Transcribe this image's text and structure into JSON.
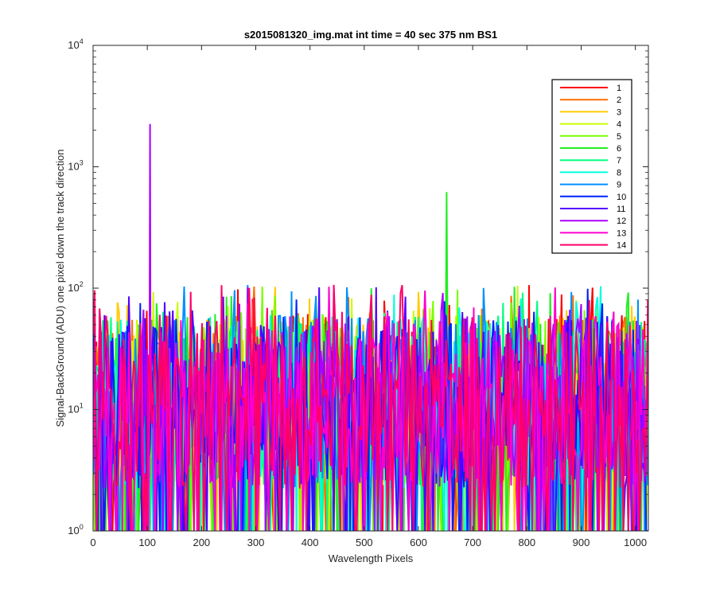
{
  "chart_data": {
    "type": "line",
    "title": "s2015081320_img.mat int time = 40 sec  375 nm BS1",
    "xlabel": "Wavelength Pixels",
    "ylabel": "Signal-BackGround (ADU) one pixel down the track direction",
    "xlim": [
      0,
      1024
    ],
    "ylim": [
      1,
      10000
    ],
    "yscale": "log",
    "x_ticks": [
      "0",
      "100",
      "200",
      "300",
      "400",
      "500",
      "600",
      "700",
      "800",
      "900",
      "1000"
    ],
    "y_ticks": [
      {
        "base": "10",
        "exp": "0"
      },
      {
        "base": "10",
        "exp": "1"
      },
      {
        "base": "10",
        "exp": "2"
      },
      {
        "base": "10",
        "exp": "3"
      },
      {
        "base": "10",
        "exp": "4"
      }
    ],
    "grid": false,
    "legend_position": "top-right",
    "noise_floor": [
      1,
      60
    ],
    "series": [
      {
        "name": "1",
        "color": "#ff0000",
        "seed": 11
      },
      {
        "name": "2",
        "color": "#ff6e00",
        "seed": 23
      },
      {
        "name": "3",
        "color": "#ffcc00",
        "seed": 37
      },
      {
        "name": "4",
        "color": "#c8ff00",
        "seed": 41
      },
      {
        "name": "5",
        "color": "#77ff00",
        "seed": 53
      },
      {
        "name": "6",
        "color": "#22ee22",
        "seed": 67,
        "spike": {
          "x": 652,
          "y": 620,
          "base": 115
        }
      },
      {
        "name": "7",
        "color": "#00ff80",
        "seed": 71
      },
      {
        "name": "8",
        "color": "#00ffdd",
        "seed": 83
      },
      {
        "name": "9",
        "color": "#0090ff",
        "seed": 97
      },
      {
        "name": "10",
        "color": "#0020ff",
        "seed": 101
      },
      {
        "name": "11",
        "color": "#5500ff",
        "seed": 113
      },
      {
        "name": "12",
        "color": "#aa00ff",
        "seed": 127,
        "spike": {
          "x": 105,
          "y": 2250,
          "base": 20
        }
      },
      {
        "name": "13",
        "color": "#ff00cc",
        "seed": 131
      },
      {
        "name": "14",
        "color": "#ff0066",
        "seed": 139
      }
    ]
  }
}
